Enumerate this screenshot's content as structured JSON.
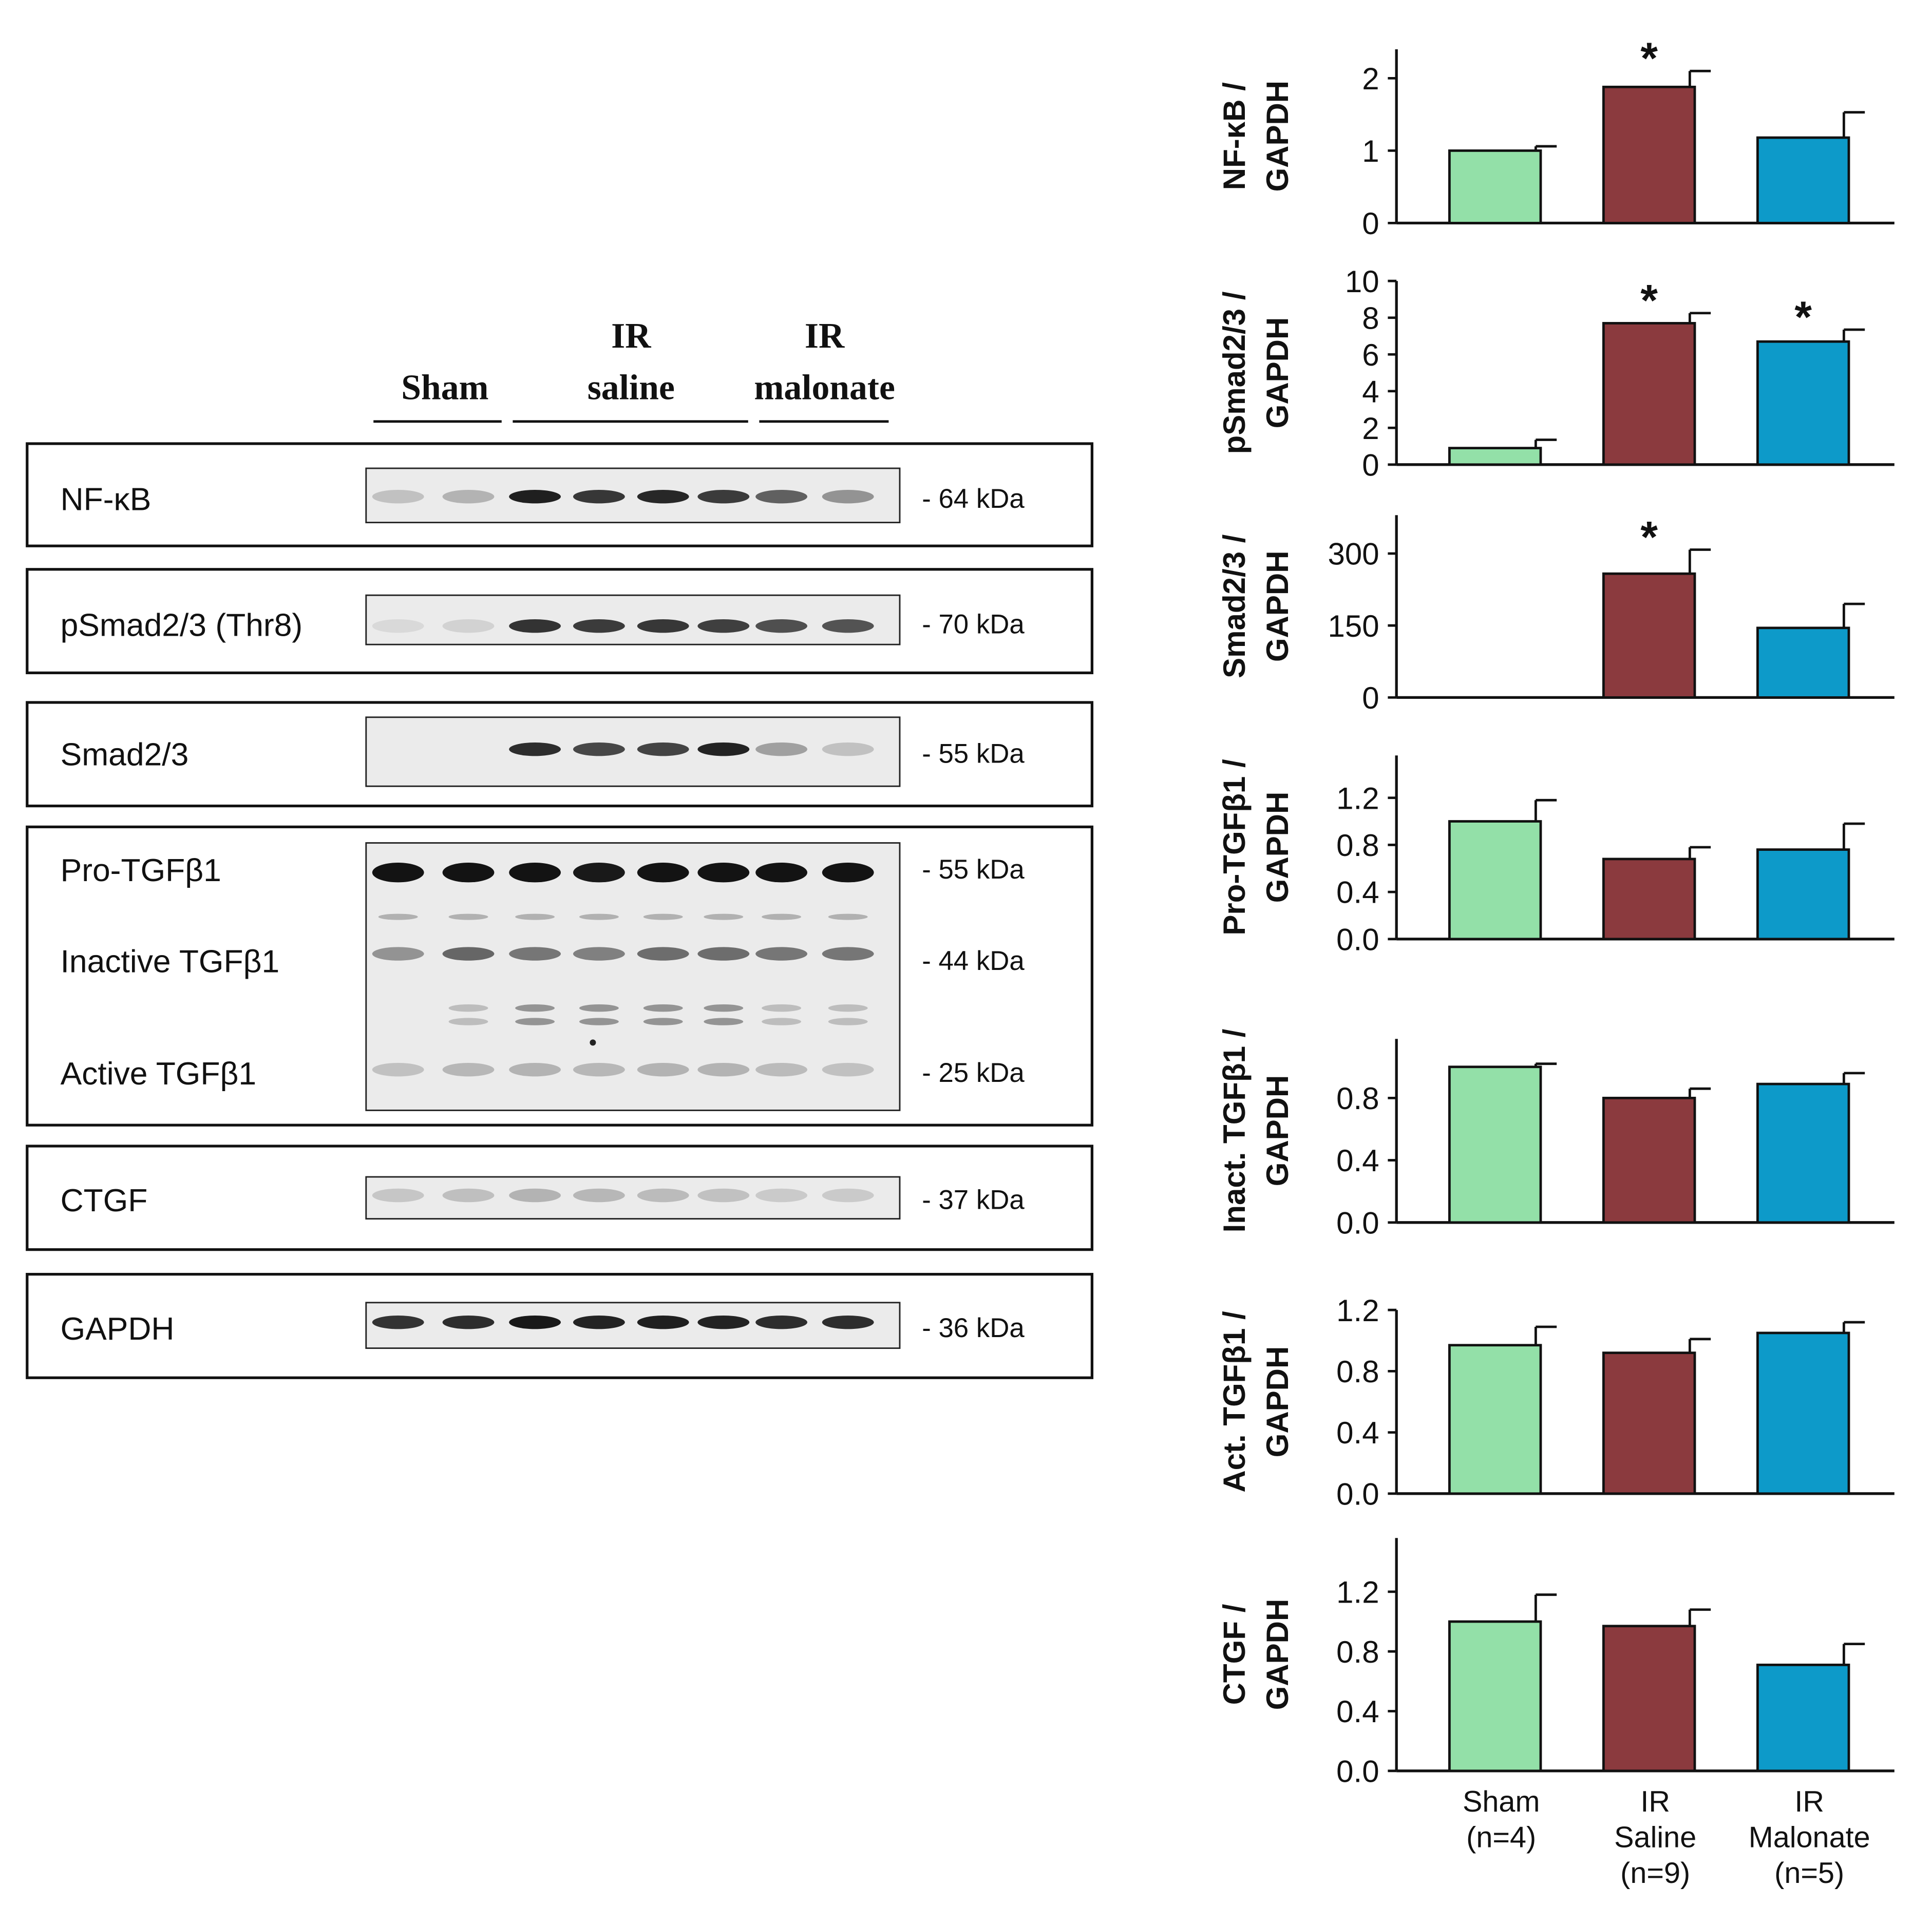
{
  "blot": {
    "groups": [
      {
        "line1": "",
        "line2": "Sham"
      },
      {
        "line1": "IR",
        "line2": "saline"
      },
      {
        "line1": "IR",
        "line2": "malonate"
      }
    ],
    "lanes_per_group": [
      2,
      4,
      2
    ],
    "panels": [
      {
        "labels": [
          "NF-κB"
        ],
        "markers": [
          "- 64 kDa"
        ],
        "intensity": [
          [
            0.25,
            0.32,
            0.92,
            0.8,
            0.88,
            0.78,
            0.62,
            0.45
          ]
        ]
      },
      {
        "labels": [
          "pSmad2/3 (Thr8)"
        ],
        "markers": [
          "- 70 kDa"
        ],
        "intensity": [
          [
            0.1,
            0.15,
            0.82,
            0.78,
            0.8,
            0.76,
            0.68,
            0.66
          ]
        ]
      },
      {
        "labels": [
          "Smad2/3"
        ],
        "markers": [
          "- 55 kDa"
        ],
        "intensity": [
          [
            0.0,
            0.0,
            0.85,
            0.72,
            0.74,
            0.9,
            0.4,
            0.25
          ]
        ]
      },
      {
        "labels": [
          "Pro-TGFβ1",
          "Inactive TGFβ1",
          "Active TGFβ1"
        ],
        "markers": [
          "- 55 kDa",
          "- 44 kDa",
          "- 25 kDa"
        ],
        "intensity": [
          [
            0.98,
            0.98,
            0.98,
            0.95,
            0.98,
            0.98,
            0.98,
            0.98
          ],
          [
            0.45,
            0.6,
            0.55,
            0.52,
            0.58,
            0.58,
            0.55,
            0.55
          ],
          [
            0.25,
            0.3,
            0.32,
            0.3,
            0.32,
            0.32,
            0.28,
            0.25
          ]
        ]
      },
      {
        "labels": [
          "CTGF"
        ],
        "markers": [
          "- 37 kDa"
        ],
        "intensity": [
          [
            0.22,
            0.26,
            0.32,
            0.3,
            0.28,
            0.25,
            0.2,
            0.2
          ]
        ]
      },
      {
        "labels": [
          "GAPDH"
        ],
        "markers": [
          "- 36 kDa"
        ],
        "intensity": [
          [
            0.82,
            0.85,
            0.95,
            0.9,
            0.92,
            0.9,
            0.85,
            0.85
          ]
        ]
      }
    ]
  },
  "colors": {
    "sham": "#93e0a8",
    "ir_saline": "#8b3a3e",
    "ir_malonate": "#0d9ac9"
  },
  "chart_data": [
    {
      "type": "bar",
      "ylabel_line1": "NF-κB /",
      "ylabel_line2": "GAPDH",
      "ylim": [
        0,
        2.4
      ],
      "ticks": [
        "0",
        "1",
        "2"
      ],
      "tick_values": [
        0,
        1,
        2
      ],
      "values": [
        1.0,
        1.88,
        1.18
      ],
      "errors": [
        0.06,
        0.22,
        0.35
      ],
      "stars": [
        false,
        true,
        false
      ]
    },
    {
      "type": "bar",
      "ylabel_line1": "pSmad2/3 /",
      "ylabel_line2": "GAPDH",
      "ylim": [
        0,
        10
      ],
      "ticks": [
        "0",
        "2",
        "4",
        "6",
        "8",
        "10"
      ],
      "tick_values": [
        0,
        2,
        4,
        6,
        8,
        10
      ],
      "values": [
        0.9,
        7.7,
        6.7
      ],
      "errors": [
        0.45,
        0.55,
        0.65
      ],
      "stars": [
        false,
        true,
        true
      ]
    },
    {
      "type": "bar",
      "ylabel_line1": "Smad2/3 /",
      "ylabel_line2": "GAPDH",
      "ylim": [
        0,
        380
      ],
      "ticks": [
        "0",
        "150",
        "300"
      ],
      "tick_values": [
        0,
        150,
        300
      ],
      "values": [
        0,
        258,
        145
      ],
      "errors": [
        0,
        50,
        50
      ],
      "stars": [
        false,
        true,
        false
      ]
    },
    {
      "type": "bar",
      "ylabel_line1": "Pro-TGFβ1 /",
      "ylabel_line2": "GAPDH",
      "ylim": [
        0,
        1.56
      ],
      "ticks": [
        "0.0",
        "0.4",
        "0.8",
        "1.2"
      ],
      "tick_values": [
        0,
        0.4,
        0.8,
        1.2
      ],
      "values": [
        1.0,
        0.68,
        0.76
      ],
      "errors": [
        0.18,
        0.1,
        0.22
      ],
      "stars": [
        false,
        false,
        false
      ]
    },
    {
      "type": "bar",
      "ylabel_line1": "Inact. TGFβ1 /",
      "ylabel_line2": "GAPDH",
      "ylim": [
        0,
        1.18
      ],
      "ticks": [
        "0.0",
        "0.4",
        "0.8"
      ],
      "tick_values": [
        0,
        0.4,
        0.8
      ],
      "values": [
        1.0,
        0.8,
        0.89
      ],
      "errors": [
        0.02,
        0.06,
        0.07
      ],
      "stars": [
        false,
        false,
        false
      ]
    },
    {
      "type": "bar",
      "ylabel_line1": "Act. TGFβ1 /",
      "ylabel_line2": "GAPDH",
      "ylim": [
        0,
        1.2
      ],
      "ticks": [
        "0.0",
        "0.4",
        "0.8",
        "1.2"
      ],
      "tick_values": [
        0,
        0.4,
        0.8,
        1.2
      ],
      "values": [
        0.97,
        0.92,
        1.05
      ],
      "errors": [
        0.12,
        0.09,
        0.07
      ],
      "stars": [
        false,
        false,
        false
      ]
    },
    {
      "type": "bar",
      "ylabel_line1": "CTGF /",
      "ylabel_line2": "GAPDH",
      "ylim": [
        0,
        1.56
      ],
      "ticks": [
        "0.0",
        "0.4",
        "0.8",
        "1.2"
      ],
      "tick_values": [
        0,
        0.4,
        0.8,
        1.2
      ],
      "values": [
        1.0,
        0.97,
        0.71
      ],
      "errors": [
        0.18,
        0.11,
        0.14
      ],
      "stars": [
        false,
        false,
        false
      ]
    }
  ],
  "x_categories": [
    {
      "line1": "Sham",
      "line2": "(n=4)",
      "line3": ""
    },
    {
      "line1": "IR",
      "line2": "Saline",
      "line3": "(n=9)"
    },
    {
      "line1": "IR",
      "line2": "Malonate",
      "line3": "(n=5)"
    }
  ],
  "star_symbol": "*"
}
